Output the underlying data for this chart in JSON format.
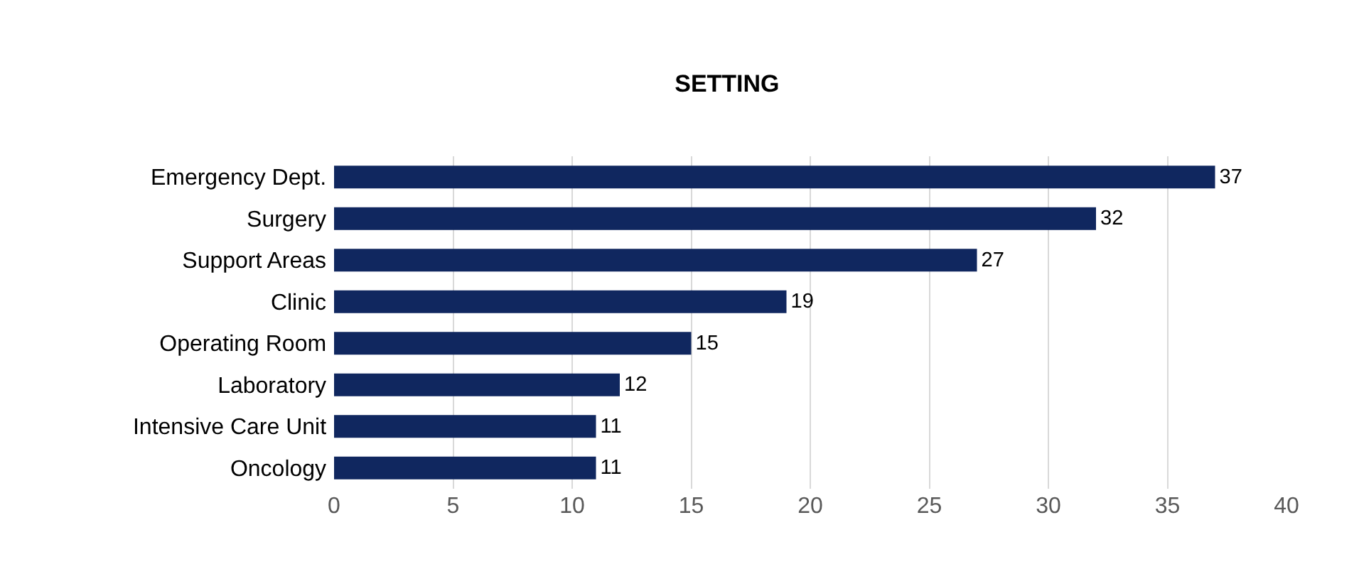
{
  "chart_data": {
    "type": "bar",
    "title": "SETTING",
    "orientation": "horizontal",
    "categories": [
      "Emergency Dept.",
      "Surgery",
      "Support Areas",
      "Clinic",
      "Operating Room",
      "Laboratory",
      "Intensive Care Unit",
      "Oncology"
    ],
    "values": [
      37,
      32,
      27,
      19,
      15,
      12,
      11,
      11
    ],
    "color": "#10275f",
    "xlim": [
      0,
      40
    ],
    "xticks": [
      0,
      5,
      10,
      15,
      20,
      25,
      30,
      35,
      40
    ],
    "grid": "x",
    "data_labels": true,
    "legend": false
  }
}
